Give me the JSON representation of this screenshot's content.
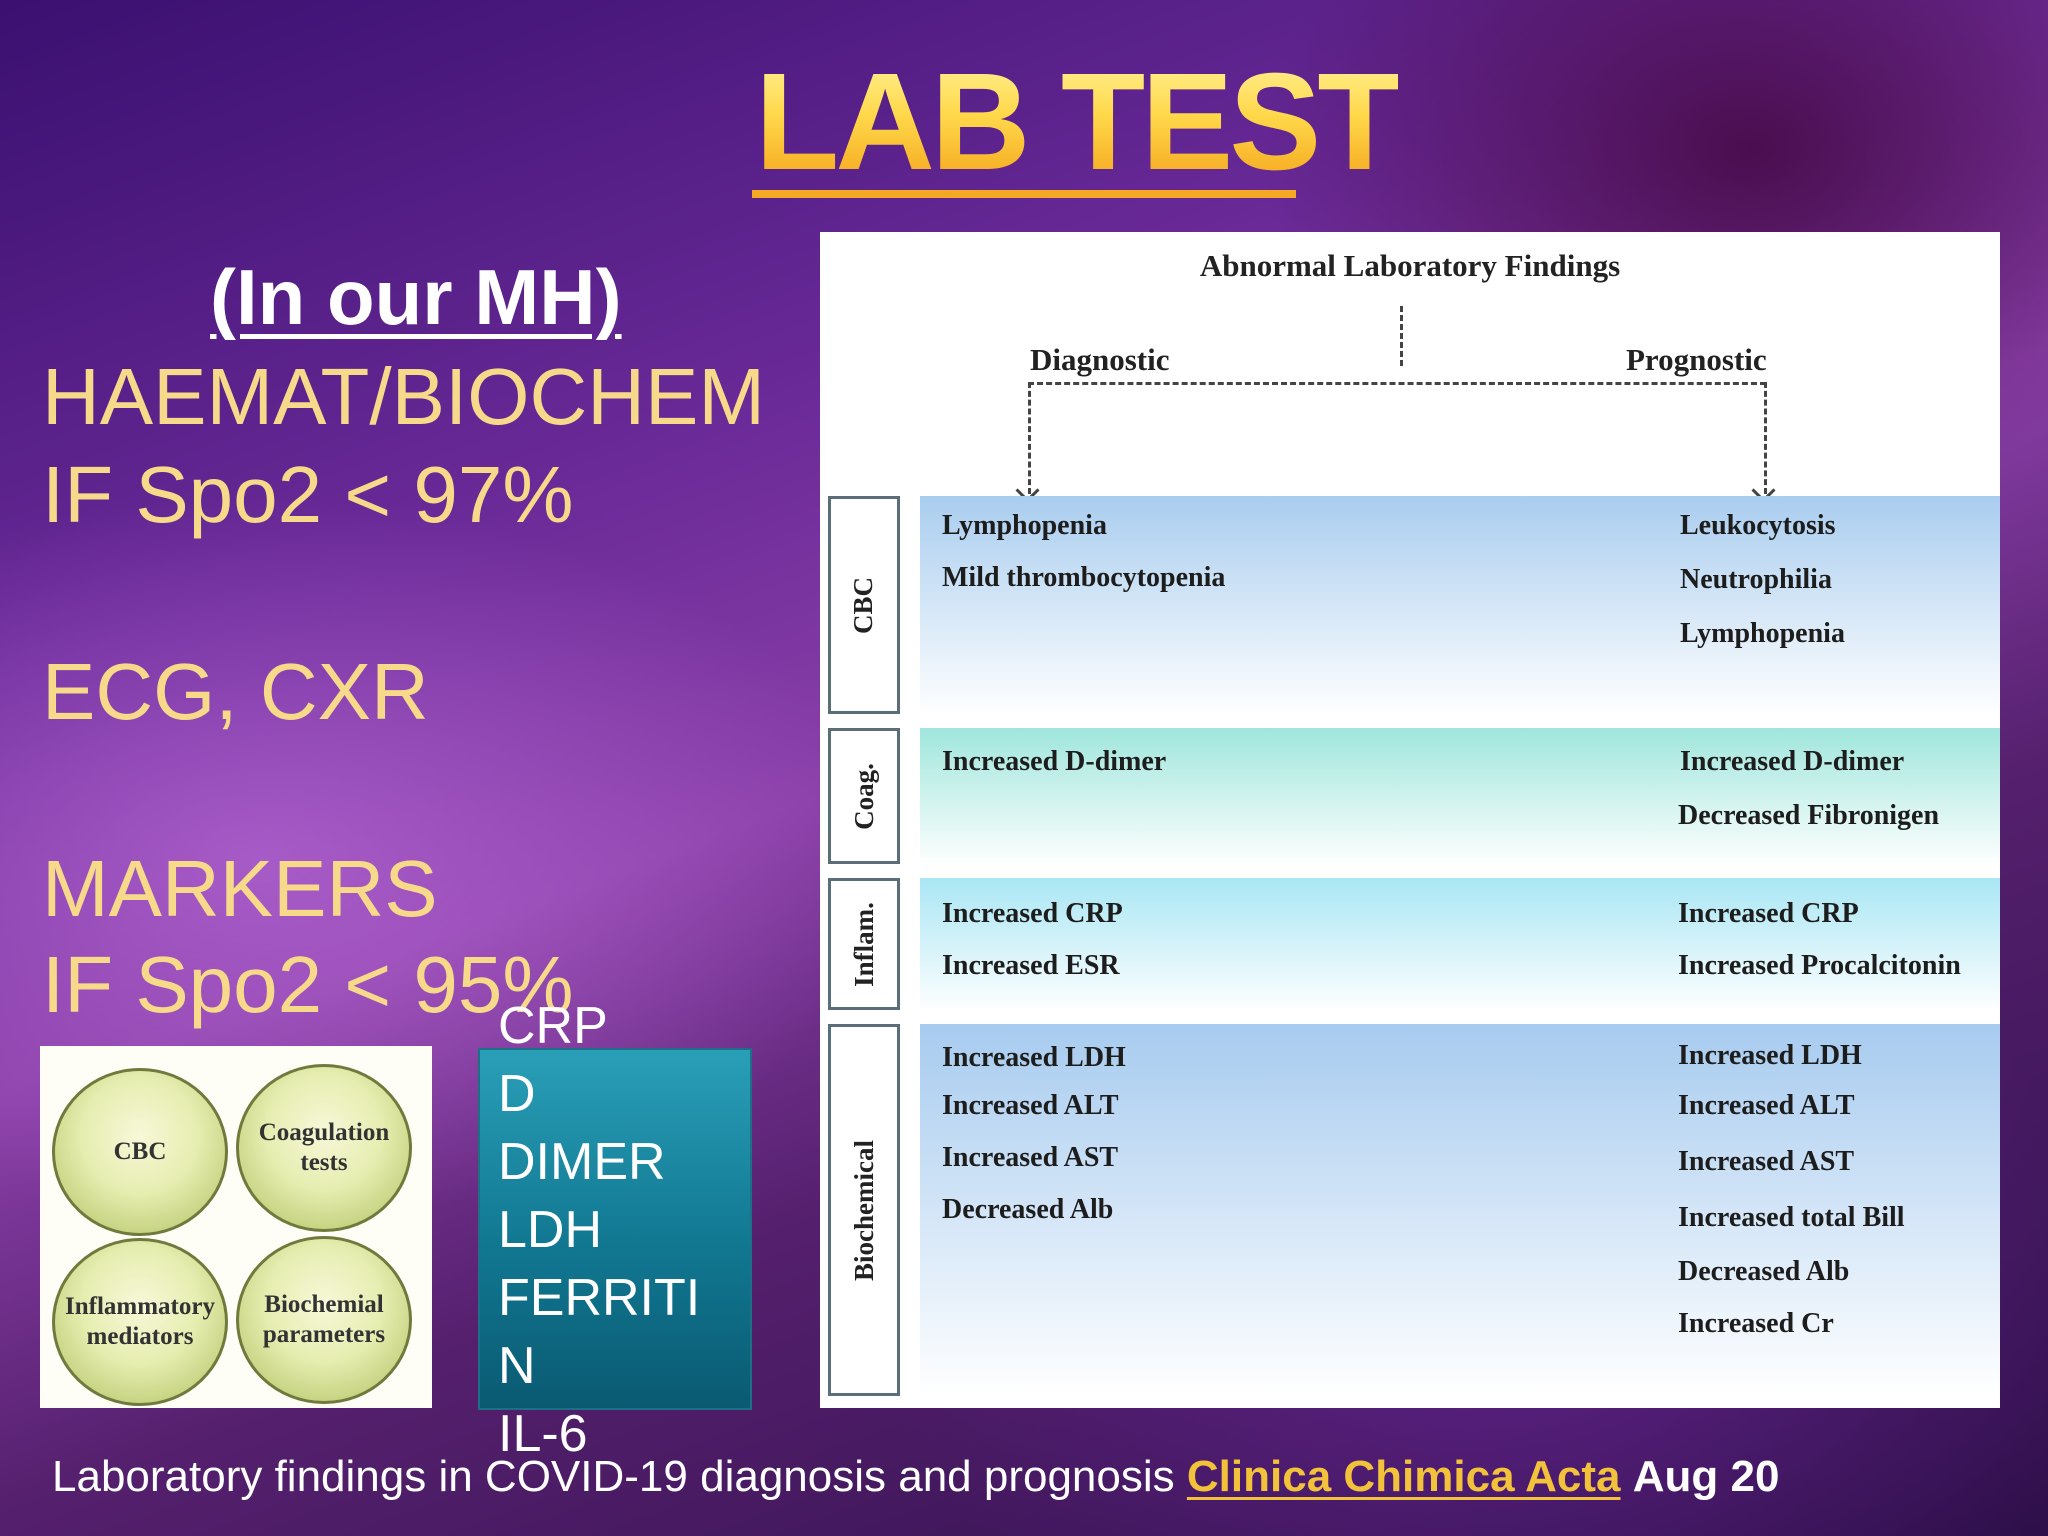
{
  "title": "LAB TEST",
  "left_panel": {
    "subtitle": "(In our MH)",
    "lines": [
      "HAEMAT/BIOCHEM",
      "IF Spo2 < 97%",
      "ECG, CXR",
      "MARKERS",
      "IF Spo2 < 95%"
    ]
  },
  "categories": [
    "CBC",
    "Coagulation tests",
    "Inflammatory mediators",
    "Biochemial parameters"
  ],
  "markers": [
    "CRP",
    "D",
    "DIMER",
    "LDH",
    "FERRITI",
    "N",
    "IL-6"
  ],
  "figure": {
    "title": "Abnormal Laboratory Findings",
    "diagnostic_label": "Diagnostic",
    "prognostic_label": "Prognostic",
    "bands": [
      {
        "label": "CBC",
        "color_top": "#a9cdef",
        "diagnostic": [
          "Lymphopenia",
          "Mild thrombocytopenia"
        ],
        "prognostic": [
          "Leukocytosis",
          "Neutrophilia",
          "Lymphopenia"
        ]
      },
      {
        "label": "Coag.",
        "color_top": "#9fe6dc",
        "diagnostic": [
          "Increased D-dimer"
        ],
        "prognostic": [
          "Increased D-dimer",
          "Decreased Fibronigen"
        ]
      },
      {
        "label": "Inflam.",
        "color_top": "#a9e6f4",
        "diagnostic": [
          "Increased CRP",
          "Increased ESR"
        ],
        "prognostic": [
          "Increased CRP",
          "Increased Procalcitonin"
        ]
      },
      {
        "label": "Biochemical",
        "color_top": "#a7cbef",
        "diagnostic": [
          "Increased LDH",
          "Increased ALT",
          "Increased AST",
          "Decreased Alb"
        ],
        "prognostic": [
          "Increased LDH",
          "Increased ALT",
          "Increased AST",
          "Increased total Bill",
          "Decreased Alb",
          "Increased Cr"
        ]
      }
    ]
  },
  "caption": {
    "text": "Laboratory findings in COVID-19 diagnosis and prognosis",
    "journal": "Clinica Chimica Acta",
    "date": "Aug 20"
  }
}
